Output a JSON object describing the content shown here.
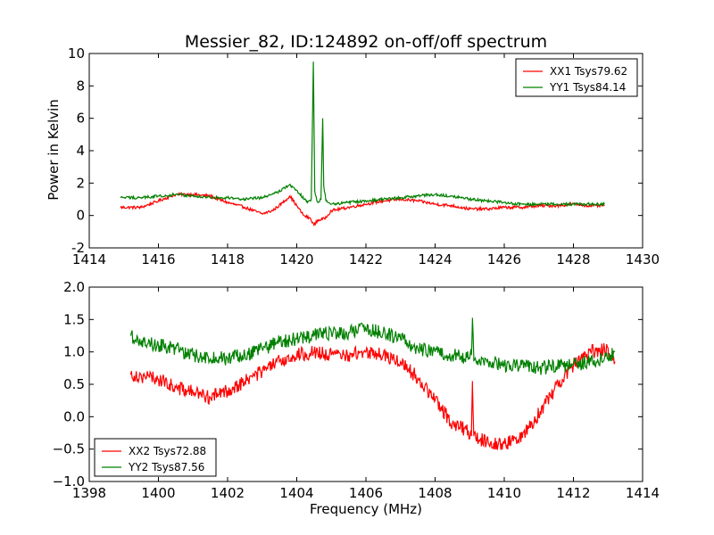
{
  "chart_data": [
    {
      "type": "line",
      "title": "Messier_82, ID:124892 on-off/off spectrum",
      "xlabel": "",
      "ylabel": "Power in Kelvin",
      "xlim": [
        1414,
        1430
      ],
      "ylim": [
        -2,
        10
      ],
      "xticks": [
        1414,
        1416,
        1418,
        1420,
        1422,
        1424,
        1426,
        1428,
        1430
      ],
      "yticks": [
        -2,
        0,
        2,
        4,
        6,
        8,
        10
      ],
      "legend_position": "upper right",
      "grid": false,
      "series": [
        {
          "name": "XX1 Tsys79.62",
          "color": "#ff0000",
          "x": [
            1414.9,
            1415.5,
            1416.0,
            1416.5,
            1417.0,
            1417.5,
            1418.0,
            1418.5,
            1419.0,
            1419.3,
            1419.6,
            1419.8,
            1420.0,
            1420.2,
            1420.4,
            1420.5,
            1420.6,
            1420.8,
            1421.0,
            1421.5,
            1422.0,
            1422.5,
            1423.0,
            1423.5,
            1424.0,
            1424.5,
            1425.0,
            1425.5,
            1426.0,
            1426.5,
            1427.0,
            1427.5,
            1428.0,
            1428.5,
            1428.9
          ],
          "y": [
            0.5,
            0.5,
            0.9,
            1.3,
            1.3,
            1.2,
            0.8,
            0.5,
            0.1,
            0.3,
            0.8,
            1.2,
            0.6,
            0.0,
            -0.2,
            -0.6,
            -0.3,
            -0.2,
            0.3,
            0.5,
            0.7,
            0.9,
            1.0,
            0.9,
            0.7,
            0.6,
            0.4,
            0.4,
            0.5,
            0.5,
            0.6,
            0.6,
            0.7,
            0.6,
            0.6
          ]
        },
        {
          "name": "YY1 Tsys84.14",
          "color": "#008000",
          "x": [
            1414.9,
            1415.5,
            1416.0,
            1416.5,
            1417.0,
            1417.5,
            1418.0,
            1418.5,
            1419.0,
            1419.4,
            1419.8,
            1420.1,
            1420.3,
            1420.42,
            1420.48,
            1420.52,
            1420.6,
            1420.7,
            1420.75,
            1420.78,
            1420.85,
            1421.0,
            1421.5,
            1422.0,
            1422.5,
            1423.0,
            1423.5,
            1424.0,
            1424.5,
            1425.0,
            1425.5,
            1426.0,
            1426.5,
            1427.0,
            1427.5,
            1428.0,
            1428.5,
            1428.9
          ],
          "y": [
            1.1,
            1.1,
            1.2,
            1.3,
            1.2,
            1.1,
            1.1,
            1.0,
            1.1,
            1.4,
            1.9,
            1.3,
            0.8,
            1.0,
            9.5,
            1.5,
            0.8,
            1.0,
            6.0,
            1.8,
            0.9,
            0.7,
            0.8,
            0.9,
            1.0,
            1.1,
            1.2,
            1.3,
            1.2,
            1.0,
            0.9,
            0.8,
            0.7,
            0.7,
            0.7,
            0.7,
            0.7,
            0.7
          ]
        }
      ]
    },
    {
      "type": "line",
      "title": "",
      "xlabel": "Frequency (MHz)",
      "ylabel": "",
      "xlim": [
        1398,
        1414
      ],
      "ylim": [
        -1.0,
        2.0
      ],
      "xticks": [
        1398,
        1400,
        1402,
        1404,
        1406,
        1408,
        1410,
        1412,
        1414
      ],
      "yticks": [
        -1.0,
        -0.5,
        0.0,
        0.5,
        1.0,
        1.5,
        2.0
      ],
      "legend_position": "lower left",
      "grid": false,
      "series": [
        {
          "name": "XX2 Tsys72.88",
          "color": "#ff0000",
          "x": [
            1399.2,
            1399.6,
            1400.0,
            1400.5,
            1401.0,
            1401.5,
            1402.0,
            1402.5,
            1403.0,
            1403.5,
            1404.0,
            1404.5,
            1405.0,
            1405.5,
            1406.0,
            1406.5,
            1407.0,
            1407.5,
            1408.0,
            1408.5,
            1408.9,
            1409.05,
            1409.08,
            1409.12,
            1409.3,
            1409.7,
            1410.0,
            1410.4,
            1410.8,
            1411.2,
            1411.6,
            1412.0,
            1412.5,
            1412.9,
            1413.2
          ],
          "y": [
            0.65,
            0.62,
            0.58,
            0.45,
            0.38,
            0.3,
            0.4,
            0.55,
            0.7,
            0.85,
            0.95,
            1.0,
            0.95,
            0.95,
            1.0,
            0.95,
            0.85,
            0.6,
            0.25,
            -0.1,
            -0.2,
            -0.3,
            0.55,
            -0.3,
            -0.35,
            -0.4,
            -0.42,
            -0.35,
            -0.1,
            0.2,
            0.55,
            0.8,
            1.0,
            1.05,
            0.85
          ]
        },
        {
          "name": "YY2 Tsys87.56",
          "color": "#008000",
          "x": [
            1399.2,
            1399.6,
            1400.0,
            1400.5,
            1401.0,
            1401.5,
            1402.0,
            1402.5,
            1403.0,
            1403.5,
            1404.0,
            1404.5,
            1405.0,
            1405.5,
            1406.0,
            1406.5,
            1407.0,
            1407.5,
            1408.0,
            1408.5,
            1409.0,
            1409.05,
            1409.08,
            1409.12,
            1409.5,
            1410.0,
            1410.5,
            1411.0,
            1411.5,
            1412.0,
            1412.5,
            1413.0,
            1413.2
          ],
          "y": [
            1.25,
            1.15,
            1.1,
            1.05,
            0.95,
            0.9,
            0.9,
            0.95,
            1.05,
            1.15,
            1.2,
            1.25,
            1.3,
            1.3,
            1.35,
            1.3,
            1.2,
            1.05,
            1.0,
            0.95,
            0.9,
            0.95,
            1.5,
            0.9,
            0.85,
            0.8,
            0.8,
            0.75,
            0.78,
            0.8,
            0.85,
            0.9,
            1.0
          ]
        }
      ]
    }
  ]
}
